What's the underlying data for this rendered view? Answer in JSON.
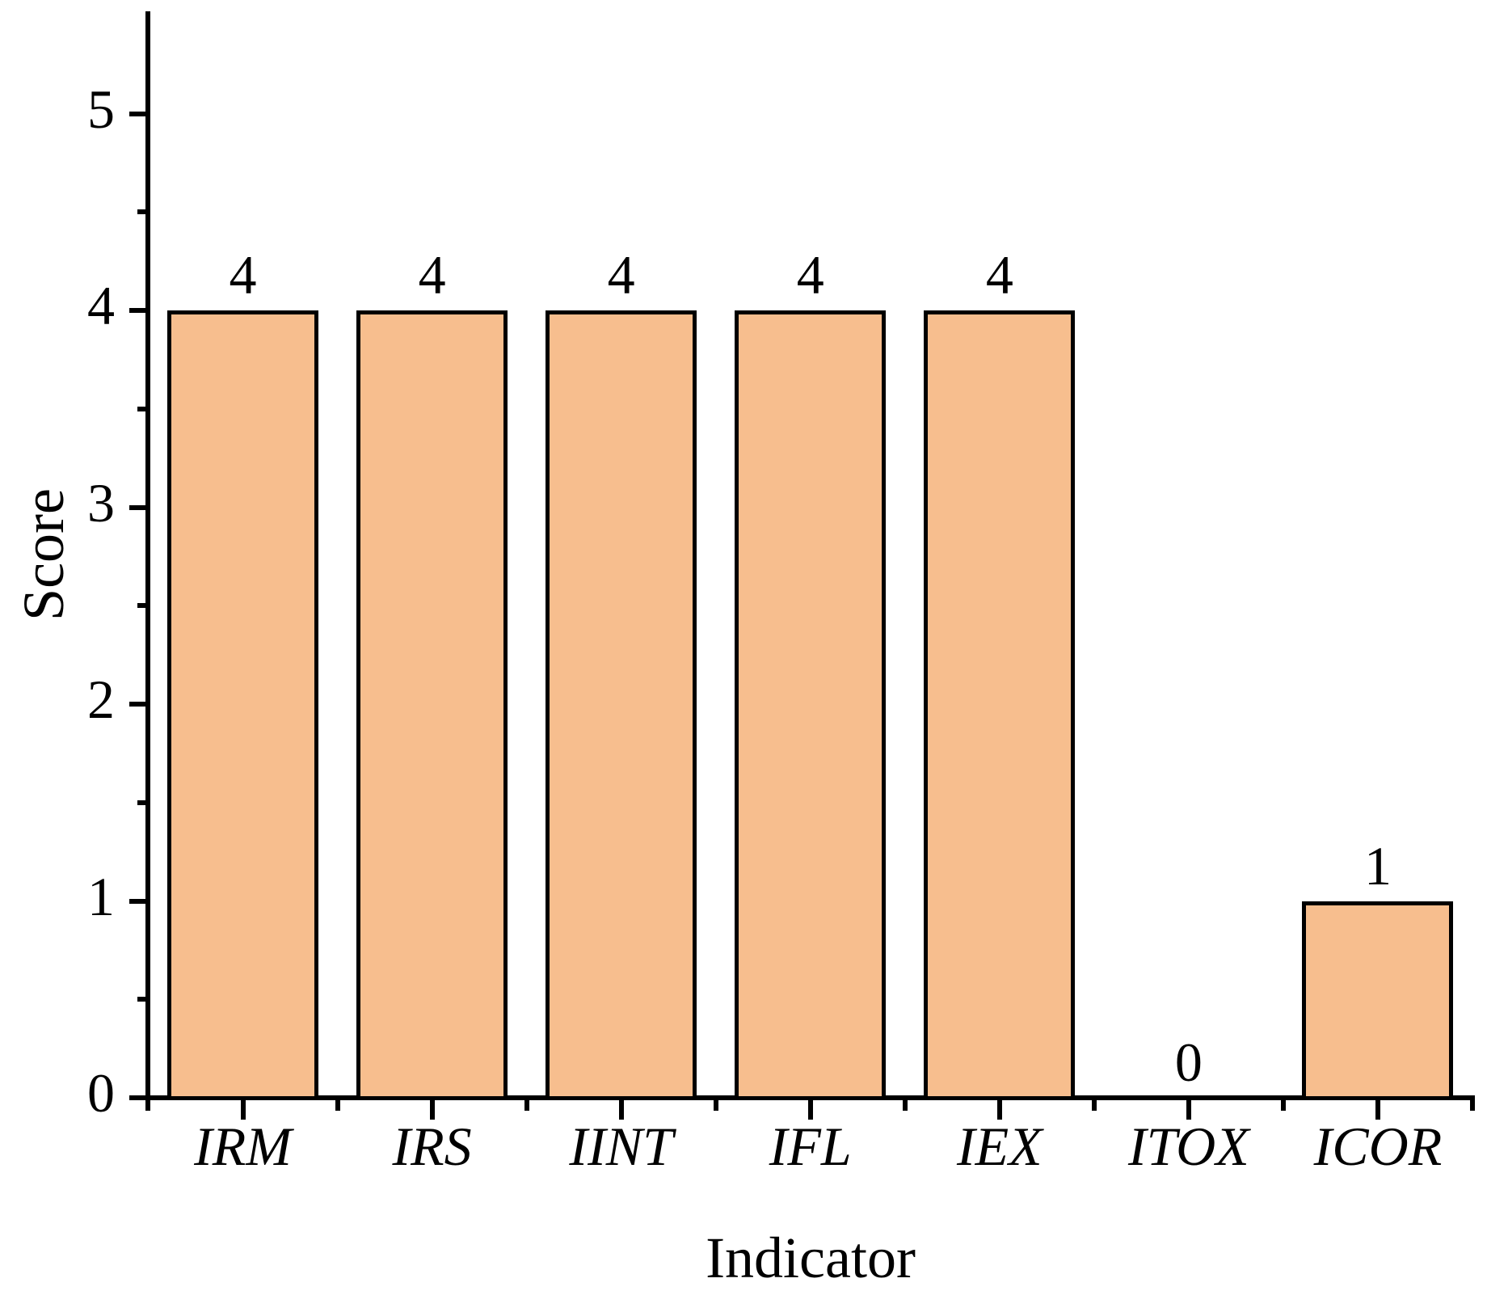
{
  "chart_data": {
    "type": "bar",
    "categories": [
      "IRM",
      "IRS",
      "IINT",
      "IFL",
      "IEX",
      "ITOX",
      "ICOR"
    ],
    "values": [
      4,
      4,
      4,
      4,
      4,
      0,
      1
    ],
    "value_labels": [
      "4",
      "4",
      "4",
      "4",
      "4",
      "0",
      "1"
    ],
    "title": "",
    "xlabel": "Indicator",
    "ylabel": "Score",
    "ylim": [
      0,
      5.5
    ],
    "yticks": [
      0,
      1,
      2,
      3,
      4,
      5
    ],
    "yminorticks": [
      0.5,
      1.5,
      2.5,
      3.5,
      4.5
    ],
    "grid": false,
    "legend": false,
    "bar_fill_color": "#F7BE8E",
    "bar_edge_color": "#000000",
    "axis_color": "#000000"
  }
}
